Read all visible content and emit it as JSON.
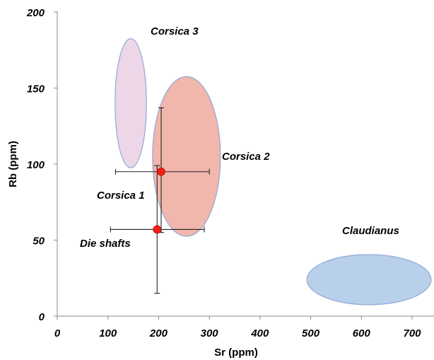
{
  "chart_data": {
    "type": "scatter",
    "title": "",
    "xlabel": "Sr (ppm)",
    "ylabel": "Rb (ppm)",
    "xlim": [
      0,
      700
    ],
    "ylim": [
      0,
      200
    ],
    "x_ticks": [
      "0",
      "100",
      "200",
      "300",
      "400",
      "500",
      "600",
      "700"
    ],
    "y_ticks": [
      "0",
      "50",
      "100",
      "150",
      "200"
    ],
    "grid": false,
    "points": [
      {
        "label": "Corsica 1",
        "x": 205,
        "y": 95,
        "x_err": [
          115,
          300
        ],
        "y_err": [
          55,
          137
        ]
      },
      {
        "label": "Die shafts",
        "x": 197,
        "y": 57,
        "x_err": [
          105,
          290
        ],
        "y_err": [
          15,
          99
        ]
      }
    ],
    "regions": [
      {
        "label": "Corsica 3",
        "x_center": 145,
        "y_center": 140,
        "x_extent": [
          113,
          175
        ],
        "y_extent": [
          103,
          188
        ],
        "color": "#ebd1e6"
      },
      {
        "label": "Corsica 2",
        "x_center": 255,
        "y_center": 105,
        "x_extent": [
          189,
          323
        ],
        "y_extent": [
          50,
          155
        ],
        "color": "#f0aea3"
      },
      {
        "label": "Claudianus",
        "x_center": 615,
        "y_center": 24,
        "x_extent": [
          495,
          740
        ],
        "y_extent": [
          7,
          40
        ],
        "color": "#b0cbe8"
      }
    ],
    "annotations": [
      "Corsica 3",
      "Corsica 2",
      "Corsica 1",
      "Die shafts",
      "Claudianus"
    ],
    "point_color": "#ee2211"
  }
}
